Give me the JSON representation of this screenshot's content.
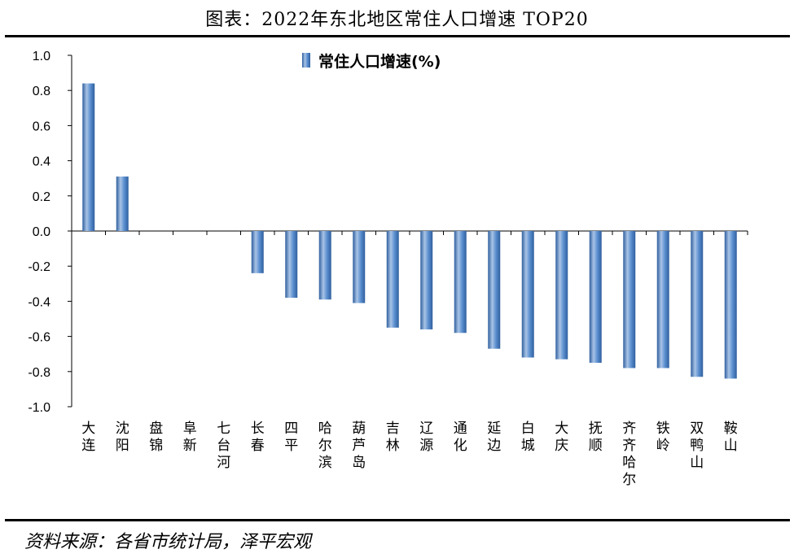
{
  "title": "图表：2022年东北地区常住人口增速 TOP20",
  "source": "资料来源：各省市统计局，泽平宏观",
  "chart_data": {
    "type": "bar",
    "legend": [
      "常住人口增速(%)"
    ],
    "legend_position": "top-center",
    "ylim": [
      -1.0,
      1.0
    ],
    "yticks": [
      "1.0",
      "0.8",
      "0.6",
      "0.4",
      "0.2",
      "0.0",
      "-0.2",
      "-0.4",
      "-0.6",
      "-0.8",
      "-1.0"
    ],
    "categories": [
      "大连",
      "沈阳",
      "盘锦",
      "阜新",
      "七台河",
      "长春",
      "四平",
      "哈尔滨",
      "葫芦岛",
      "吉林",
      "辽源",
      "通化",
      "延边",
      "白城",
      "大庆",
      "抚顺",
      "齐齐哈尔",
      "铁岭",
      "双鸭山",
      "鞍山"
    ],
    "values": [
      0.84,
      0.31,
      0.0,
      0.0,
      0.0,
      -0.24,
      -0.38,
      -0.39,
      -0.41,
      -0.55,
      -0.56,
      -0.58,
      -0.67,
      -0.72,
      -0.73,
      -0.75,
      -0.78,
      -0.78,
      -0.83,
      -0.84
    ],
    "colors": {
      "bar_light": "#a9c4e6",
      "bar_mid": "#5b8fd0",
      "bar_dark": "#2f5f9e"
    },
    "grid": false
  }
}
